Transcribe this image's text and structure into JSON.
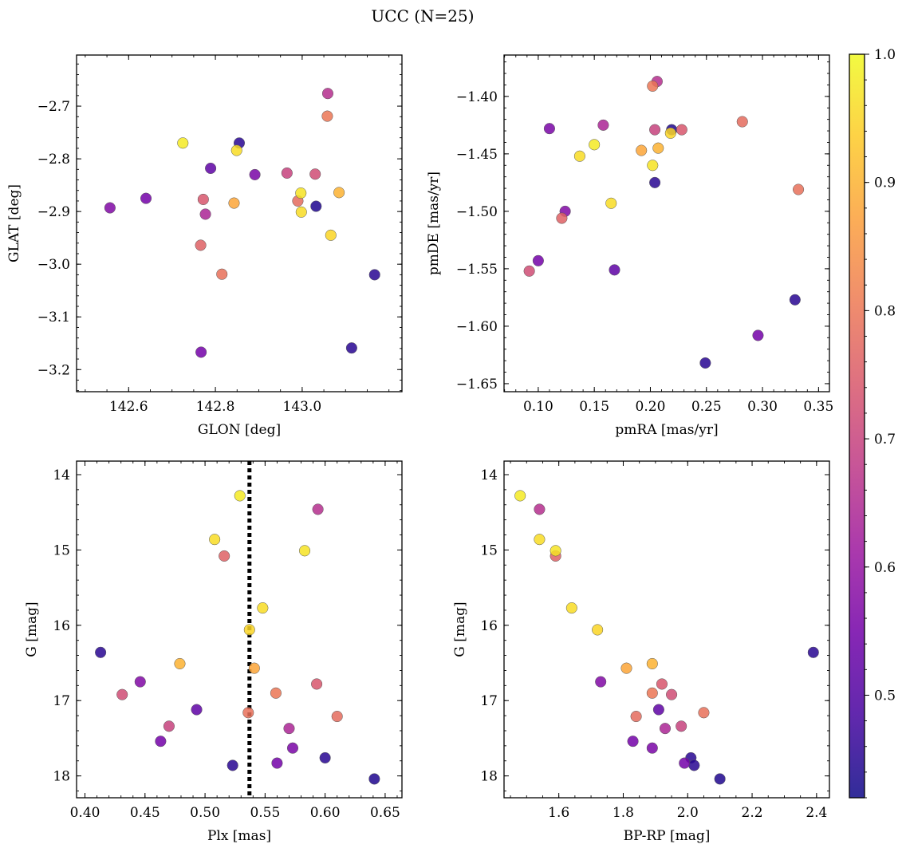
{
  "title": "UCC (N=25)",
  "colormap": {
    "name": "plasma",
    "stops": [
      "#0d0887",
      "#46039f",
      "#7201a8",
      "#9c179e",
      "#bd3786",
      "#d8576b",
      "#ed7953",
      "#fb9f3a",
      "#fdca26",
      "#f0f921"
    ],
    "min": 0.42,
    "max": 1.0,
    "ticks": [
      {
        "v": 0.5,
        "label": "0.5"
      },
      {
        "v": 0.6,
        "label": "0.6"
      },
      {
        "v": 0.7,
        "label": "0.7"
      },
      {
        "v": 0.8,
        "label": "0.8"
      },
      {
        "v": 0.9,
        "label": "0.9"
      },
      {
        "v": 1.0,
        "label": "1.0"
      }
    ]
  },
  "plx_line": 0.537,
  "chart_data": [
    {
      "id": "glon-glat",
      "type": "scatter",
      "xlabel": "GLON [deg]",
      "ylabel": "GLAT [deg]",
      "xlim": [
        142.48,
        143.23
      ],
      "ylim": [
        -3.242,
        -2.603
      ],
      "y_inverted": false,
      "xticks": [
        {
          "v": 142.6,
          "label": "142.6"
        },
        {
          "v": 142.8,
          "label": "142.8"
        },
        {
          "v": 143.0,
          "label": "143.0"
        }
      ],
      "xminor_step": 0.05,
      "yticks": [
        {
          "v": -2.7,
          "label": "−2.7"
        },
        {
          "v": -2.8,
          "label": "−2.8"
        },
        {
          "v": -2.9,
          "label": "−2.9"
        },
        {
          "v": -3.0,
          "label": "−3.0"
        },
        {
          "v": -3.1,
          "label": "−3.1"
        },
        {
          "v": -3.2,
          "label": "−3.2"
        }
      ],
      "yminor_step": 0.02
    },
    {
      "id": "pm",
      "type": "scatter",
      "xlabel": "pmRA [mas/yr]",
      "ylabel": "pmDE [mas/yr]",
      "xlim": [
        0.0695,
        0.3597
      ],
      "ylim": [
        -1.657,
        -1.364
      ],
      "y_inverted": false,
      "xticks": [
        {
          "v": 0.1,
          "label": "0.10"
        },
        {
          "v": 0.15,
          "label": "0.15"
        },
        {
          "v": 0.2,
          "label": "0.20"
        },
        {
          "v": 0.25,
          "label": "0.25"
        },
        {
          "v": 0.3,
          "label": "0.30"
        },
        {
          "v": 0.35,
          "label": "0.35"
        }
      ],
      "xminor_step": 0.01,
      "yticks": [
        {
          "v": -1.4,
          "label": "−1.40"
        },
        {
          "v": -1.45,
          "label": "−1.45"
        },
        {
          "v": -1.5,
          "label": "−1.50"
        },
        {
          "v": -1.55,
          "label": "−1.55"
        },
        {
          "v": -1.6,
          "label": "−1.60"
        },
        {
          "v": -1.65,
          "label": "−1.65"
        }
      ],
      "yminor_step": 0.01
    },
    {
      "id": "plx-g",
      "type": "scatter",
      "xlabel": "Plx [mas]",
      "ylabel": "G [mag]",
      "xlim": [
        0.393,
        0.664
      ],
      "ylim": [
        13.82,
        18.29
      ],
      "y_inverted": true,
      "xticks": [
        {
          "v": 0.4,
          "label": "0.40"
        },
        {
          "v": 0.45,
          "label": "0.45"
        },
        {
          "v": 0.5,
          "label": "0.50"
        },
        {
          "v": 0.55,
          "label": "0.55"
        },
        {
          "v": 0.6,
          "label": "0.60"
        },
        {
          "v": 0.65,
          "label": "0.65"
        }
      ],
      "xminor_step": 0.01,
      "yticks": [
        {
          "v": 14,
          "label": "14"
        },
        {
          "v": 15,
          "label": "15"
        },
        {
          "v": 16,
          "label": "16"
        },
        {
          "v": 17,
          "label": "17"
        },
        {
          "v": 18,
          "label": "18"
        }
      ],
      "yminor_step": 0.2
    },
    {
      "id": "cmd",
      "type": "scatter",
      "xlabel": "BP-RP [mag]",
      "ylabel": "G [mag]",
      "xlim": [
        1.43,
        2.44
      ],
      "ylim": [
        13.82,
        18.29
      ],
      "y_inverted": true,
      "xticks": [
        {
          "v": 1.6,
          "label": "1.6"
        },
        {
          "v": 1.8,
          "label": "1.8"
        },
        {
          "v": 2.0,
          "label": "2.0"
        },
        {
          "v": 2.2,
          "label": "2.2"
        },
        {
          "v": 2.4,
          "label": "2.4"
        }
      ],
      "xminor_step": 0.05,
      "yticks": [
        {
          "v": 14,
          "label": "14"
        },
        {
          "v": 15,
          "label": "15"
        },
        {
          "v": 16,
          "label": "16"
        },
        {
          "v": 17,
          "label": "17"
        },
        {
          "v": 18,
          "label": "18"
        }
      ],
      "yminor_step": 0.2
    }
  ],
  "stars": [
    {
      "glon": 142.725,
      "glat": -2.77,
      "pmra": 0.15,
      "pmde": -1.442,
      "plx": 0.529,
      "g": 14.28,
      "bprp": 1.48,
      "p": 0.98
    },
    {
      "glon": 143.059,
      "glat": -2.676,
      "pmra": 0.206,
      "pmde": -1.387,
      "plx": 0.594,
      "g": 14.46,
      "bprp": 1.54,
      "p": 0.66
    },
    {
      "glon": 142.849,
      "glat": -2.784,
      "pmra": 0.137,
      "pmde": -1.452,
      "plx": 0.508,
      "g": 14.86,
      "bprp": 1.54,
      "p": 0.96
    },
    {
      "glon": 142.997,
      "glat": -2.865,
      "pmra": 0.202,
      "pmde": -1.46,
      "plx": 0.583,
      "g": 15.01,
      "bprp": 1.59,
      "p": 0.97
    },
    {
      "glon": 142.766,
      "glat": -2.964,
      "pmra": 0.121,
      "pmde": -1.506,
      "plx": 0.516,
      "g": 15.08,
      "bprp": 1.59,
      "p": 0.76
    },
    {
      "glon": 142.998,
      "glat": -2.901,
      "pmra": 0.165,
      "pmde": -1.493,
      "plx": 0.548,
      "g": 15.77,
      "bprp": 1.64,
      "p": 0.96
    },
    {
      "glon": 143.066,
      "glat": -2.945,
      "pmra": 0.218,
      "pmde": -1.432,
      "plx": 0.537,
      "g": 16.06,
      "bprp": 1.72,
      "p": 0.95
    },
    {
      "glon": 142.843,
      "glat": -2.884,
      "pmra": 0.192,
      "pmde": -1.447,
      "plx": 0.541,
      "g": 16.57,
      "bprp": 1.81,
      "p": 0.88
    },
    {
      "glon": 143.085,
      "glat": -2.864,
      "pmra": 0.207,
      "pmde": -1.445,
      "plx": 0.479,
      "g": 16.51,
      "bprp": 1.89,
      "p": 0.9
    },
    {
      "glon": 143.058,
      "glat": -2.719,
      "pmra": 0.202,
      "pmde": -1.391,
      "plx": 0.559,
      "g": 16.9,
      "bprp": 1.89,
      "p": 0.8
    },
    {
      "glon": 142.772,
      "glat": -2.877,
      "pmra": 0.228,
      "pmde": -1.429,
      "plx": 0.593,
      "g": 16.78,
      "bprp": 1.92,
      "p": 0.74
    },
    {
      "glon": 143.03,
      "glat": -2.829,
      "pmra": 0.092,
      "pmde": -1.552,
      "plx": 0.431,
      "g": 16.92,
      "bprp": 1.95,
      "p": 0.72
    },
    {
      "glon": 142.815,
      "glat": -3.019,
      "pmra": 0.332,
      "pmde": -1.481,
      "plx": 0.536,
      "g": 17.16,
      "bprp": 2.05,
      "p": 0.79
    },
    {
      "glon": 142.99,
      "glat": -2.88,
      "pmra": 0.282,
      "pmde": -1.422,
      "plx": 0.61,
      "g": 17.21,
      "bprp": 1.84,
      "p": 0.78
    },
    {
      "glon": 142.965,
      "glat": -2.827,
      "pmra": 0.204,
      "pmde": -1.429,
      "plx": 0.47,
      "g": 17.34,
      "bprp": 1.98,
      "p": 0.7
    },
    {
      "glon": 142.777,
      "glat": -2.905,
      "pmra": 0.158,
      "pmde": -1.425,
      "plx": 0.57,
      "g": 17.37,
      "bprp": 1.93,
      "p": 0.64
    },
    {
      "glon": 142.557,
      "glat": -2.893,
      "pmra": 0.124,
      "pmde": -1.5,
      "plx": 0.446,
      "g": 16.75,
      "bprp": 1.73,
      "p": 0.57
    },
    {
      "glon": 142.64,
      "glat": -2.875,
      "pmra": 0.1,
      "pmde": -1.543,
      "plx": 0.463,
      "g": 17.54,
      "bprp": 1.83,
      "p": 0.55
    },
    {
      "glon": 142.891,
      "glat": -2.83,
      "pmra": 0.11,
      "pmde": -1.428,
      "plx": 0.573,
      "g": 17.63,
      "bprp": 1.89,
      "p": 0.56
    },
    {
      "glon": 142.789,
      "glat": -2.818,
      "pmra": 0.168,
      "pmde": -1.551,
      "plx": 0.493,
      "g": 17.12,
      "bprp": 1.91,
      "p": 0.52
    },
    {
      "glon": 142.855,
      "glat": -2.77,
      "pmra": 0.249,
      "pmde": -1.632,
      "plx": 0.413,
      "g": 16.36,
      "bprp": 2.39,
      "p": 0.45
    },
    {
      "glon": 143.167,
      "glat": -3.02,
      "pmra": 0.329,
      "pmde": -1.577,
      "plx": 0.6,
      "g": 17.76,
      "bprp": 2.01,
      "p": 0.45
    },
    {
      "glon": 142.767,
      "glat": -3.167,
      "pmra": 0.296,
      "pmde": -1.608,
      "plx": 0.56,
      "g": 17.83,
      "bprp": 1.99,
      "p": 0.55
    },
    {
      "glon": 143.114,
      "glat": -3.159,
      "pmra": 0.204,
      "pmde": -1.475,
      "plx": 0.523,
      "g": 17.86,
      "bprp": 2.02,
      "p": 0.45
    },
    {
      "glon": 143.032,
      "glat": -2.89,
      "pmra": 0.219,
      "pmde": -1.429,
      "plx": 0.641,
      "g": 18.04,
      "bprp": 2.1,
      "p": 0.44
    }
  ]
}
